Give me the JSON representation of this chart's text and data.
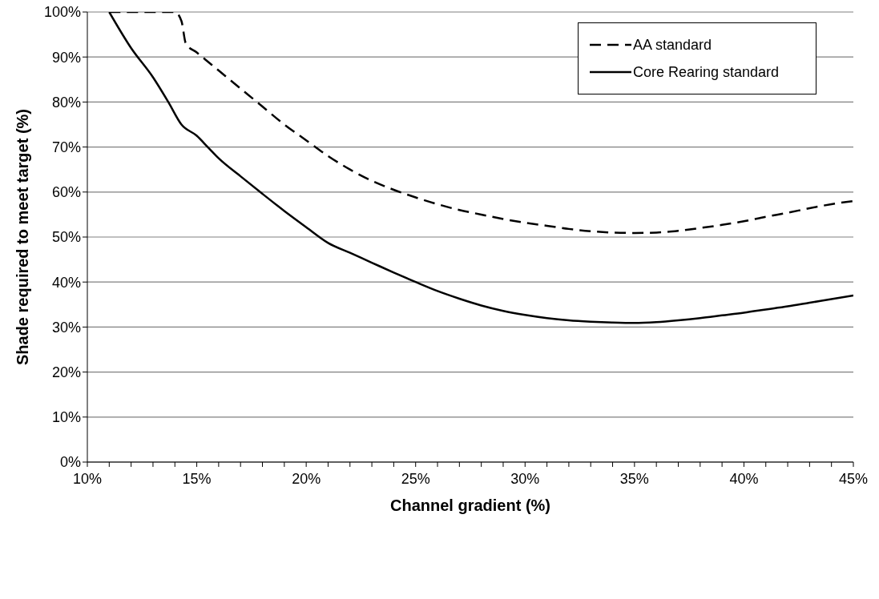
{
  "chart_data": {
    "type": "line",
    "xlabel": "Channel gradient (%)",
    "ylabel": "Shade required to meet target (%)",
    "xlim": [
      10,
      45
    ],
    "ylim": [
      0,
      100
    ],
    "xticks": [
      {
        "value": 10,
        "label": "10%"
      },
      {
        "value": 11,
        "label": null
      },
      {
        "value": 12,
        "label": null
      },
      {
        "value": 13,
        "label": null
      },
      {
        "value": 14,
        "label": null
      },
      {
        "value": 15,
        "label": "15%"
      },
      {
        "value": 16,
        "label": null
      },
      {
        "value": 17,
        "label": null
      },
      {
        "value": 18,
        "label": null
      },
      {
        "value": 19,
        "label": null
      },
      {
        "value": 20,
        "label": "20%"
      },
      {
        "value": 21,
        "label": null
      },
      {
        "value": 22,
        "label": null
      },
      {
        "value": 23,
        "label": null
      },
      {
        "value": 24,
        "label": null
      },
      {
        "value": 25,
        "label": "25%"
      },
      {
        "value": 26,
        "label": null
      },
      {
        "value": 27,
        "label": null
      },
      {
        "value": 28,
        "label": null
      },
      {
        "value": 29,
        "label": null
      },
      {
        "value": 30,
        "label": "30%"
      },
      {
        "value": 31,
        "label": null
      },
      {
        "value": 32,
        "label": null
      },
      {
        "value": 33,
        "label": null
      },
      {
        "value": 34,
        "label": null
      },
      {
        "value": 35,
        "label": "35%"
      },
      {
        "value": 36,
        "label": null
      },
      {
        "value": 37,
        "label": null
      },
      {
        "value": 38,
        "label": null
      },
      {
        "value": 39,
        "label": null
      },
      {
        "value": 40,
        "label": "40%"
      },
      {
        "value": 41,
        "label": null
      },
      {
        "value": 42,
        "label": null
      },
      {
        "value": 43,
        "label": null
      },
      {
        "value": 44,
        "label": null
      },
      {
        "value": 45,
        "label": "45%"
      }
    ],
    "yticks": [
      {
        "value": 0,
        "label": "0%"
      },
      {
        "value": 10,
        "label": "10%"
      },
      {
        "value": 20,
        "label": "20%"
      },
      {
        "value": 30,
        "label": "30%"
      },
      {
        "value": 40,
        "label": "40%"
      },
      {
        "value": 50,
        "label": "50%"
      },
      {
        "value": 60,
        "label": "60%"
      },
      {
        "value": 70,
        "label": "70%"
      },
      {
        "value": 80,
        "label": "80%"
      },
      {
        "value": 90,
        "label": "90%"
      },
      {
        "value": 100,
        "label": "100%"
      }
    ],
    "grid": "y",
    "legend": "top right",
    "marker": "none",
    "series": [
      {
        "name": "AA standard",
        "color": "#000000",
        "line_style": "dashed",
        "x": [
          11,
          14,
          14.3,
          14.5,
          15,
          16,
          17,
          18,
          19,
          20,
          21,
          22,
          23,
          24,
          25,
          26,
          27,
          28,
          29,
          30,
          31,
          32,
          33,
          34,
          35,
          36,
          37,
          38,
          39,
          40,
          41,
          42,
          43,
          44,
          45
        ],
        "values": [
          100,
          100,
          98,
          93,
          91,
          87,
          83,
          79,
          75,
          71.5,
          68,
          65,
          62.5,
          60.5,
          58.8,
          57.3,
          56,
          55,
          54,
          53.2,
          52.5,
          51.8,
          51.3,
          51,
          50.9,
          51,
          51.4,
          52,
          52.7,
          53.5,
          54.5,
          55.4,
          56.4,
          57.3,
          58
        ]
      },
      {
        "name": "Core Rearing standard",
        "color": "#000000",
        "line_style": "solid",
        "x": [
          11,
          12,
          13,
          13.7,
          14.3,
          15,
          15.5,
          16,
          17,
          18,
          19,
          20,
          21,
          22,
          23,
          24,
          25,
          26,
          27,
          28,
          29,
          30,
          31,
          32,
          33,
          34,
          35,
          36,
          37,
          38,
          39,
          40,
          41,
          42,
          43,
          44,
          45
        ],
        "values": [
          100,
          92,
          85.5,
          80,
          75,
          72.5,
          70,
          67.5,
          63.5,
          59.6,
          55.8,
          52.2,
          48.7,
          46.5,
          44.3,
          42.1,
          40,
          38,
          36.3,
          34.8,
          33.6,
          32.7,
          32,
          31.5,
          31.2,
          31,
          30.9,
          31.1,
          31.5,
          32,
          32.6,
          33.2,
          33.9,
          34.6,
          35.4,
          36.2,
          37
        ]
      }
    ]
  }
}
